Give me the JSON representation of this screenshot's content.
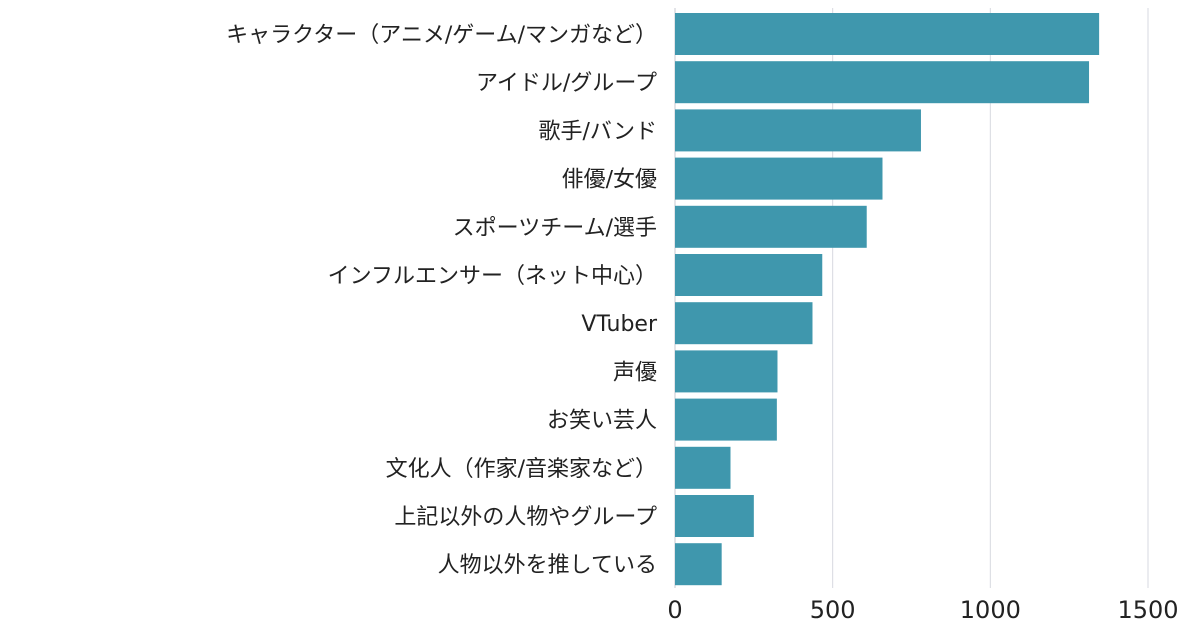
{
  "colors": {
    "bar": "#3f97ad",
    "grid": "#d7d9e0",
    "text": "#222222",
    "background": "#ffffff"
  },
  "chart_data": {
    "type": "bar",
    "orientation": "horizontal",
    "title": "",
    "xlabel": "",
    "ylabel": "",
    "grid": true,
    "xlim": [
      0,
      1500
    ],
    "xticks": [
      0,
      500,
      1000,
      1500
    ],
    "categories": [
      "キャラクター（アニメ/ゲーム/マンガなど）",
      "アイドル/グループ",
      "歌手/バンド",
      "俳優/女優",
      "スポーツチーム/選手",
      "インフルエンサー（ネット中心）",
      "VTuber",
      "声優",
      "お笑い芸人",
      "文化人（作家/音楽家など）",
      "上記以外の人物やグループ",
      "人物以外を推している"
    ],
    "values": [
      1345,
      1313,
      780,
      658,
      608,
      467,
      436,
      325,
      323,
      176,
      250,
      148
    ]
  }
}
